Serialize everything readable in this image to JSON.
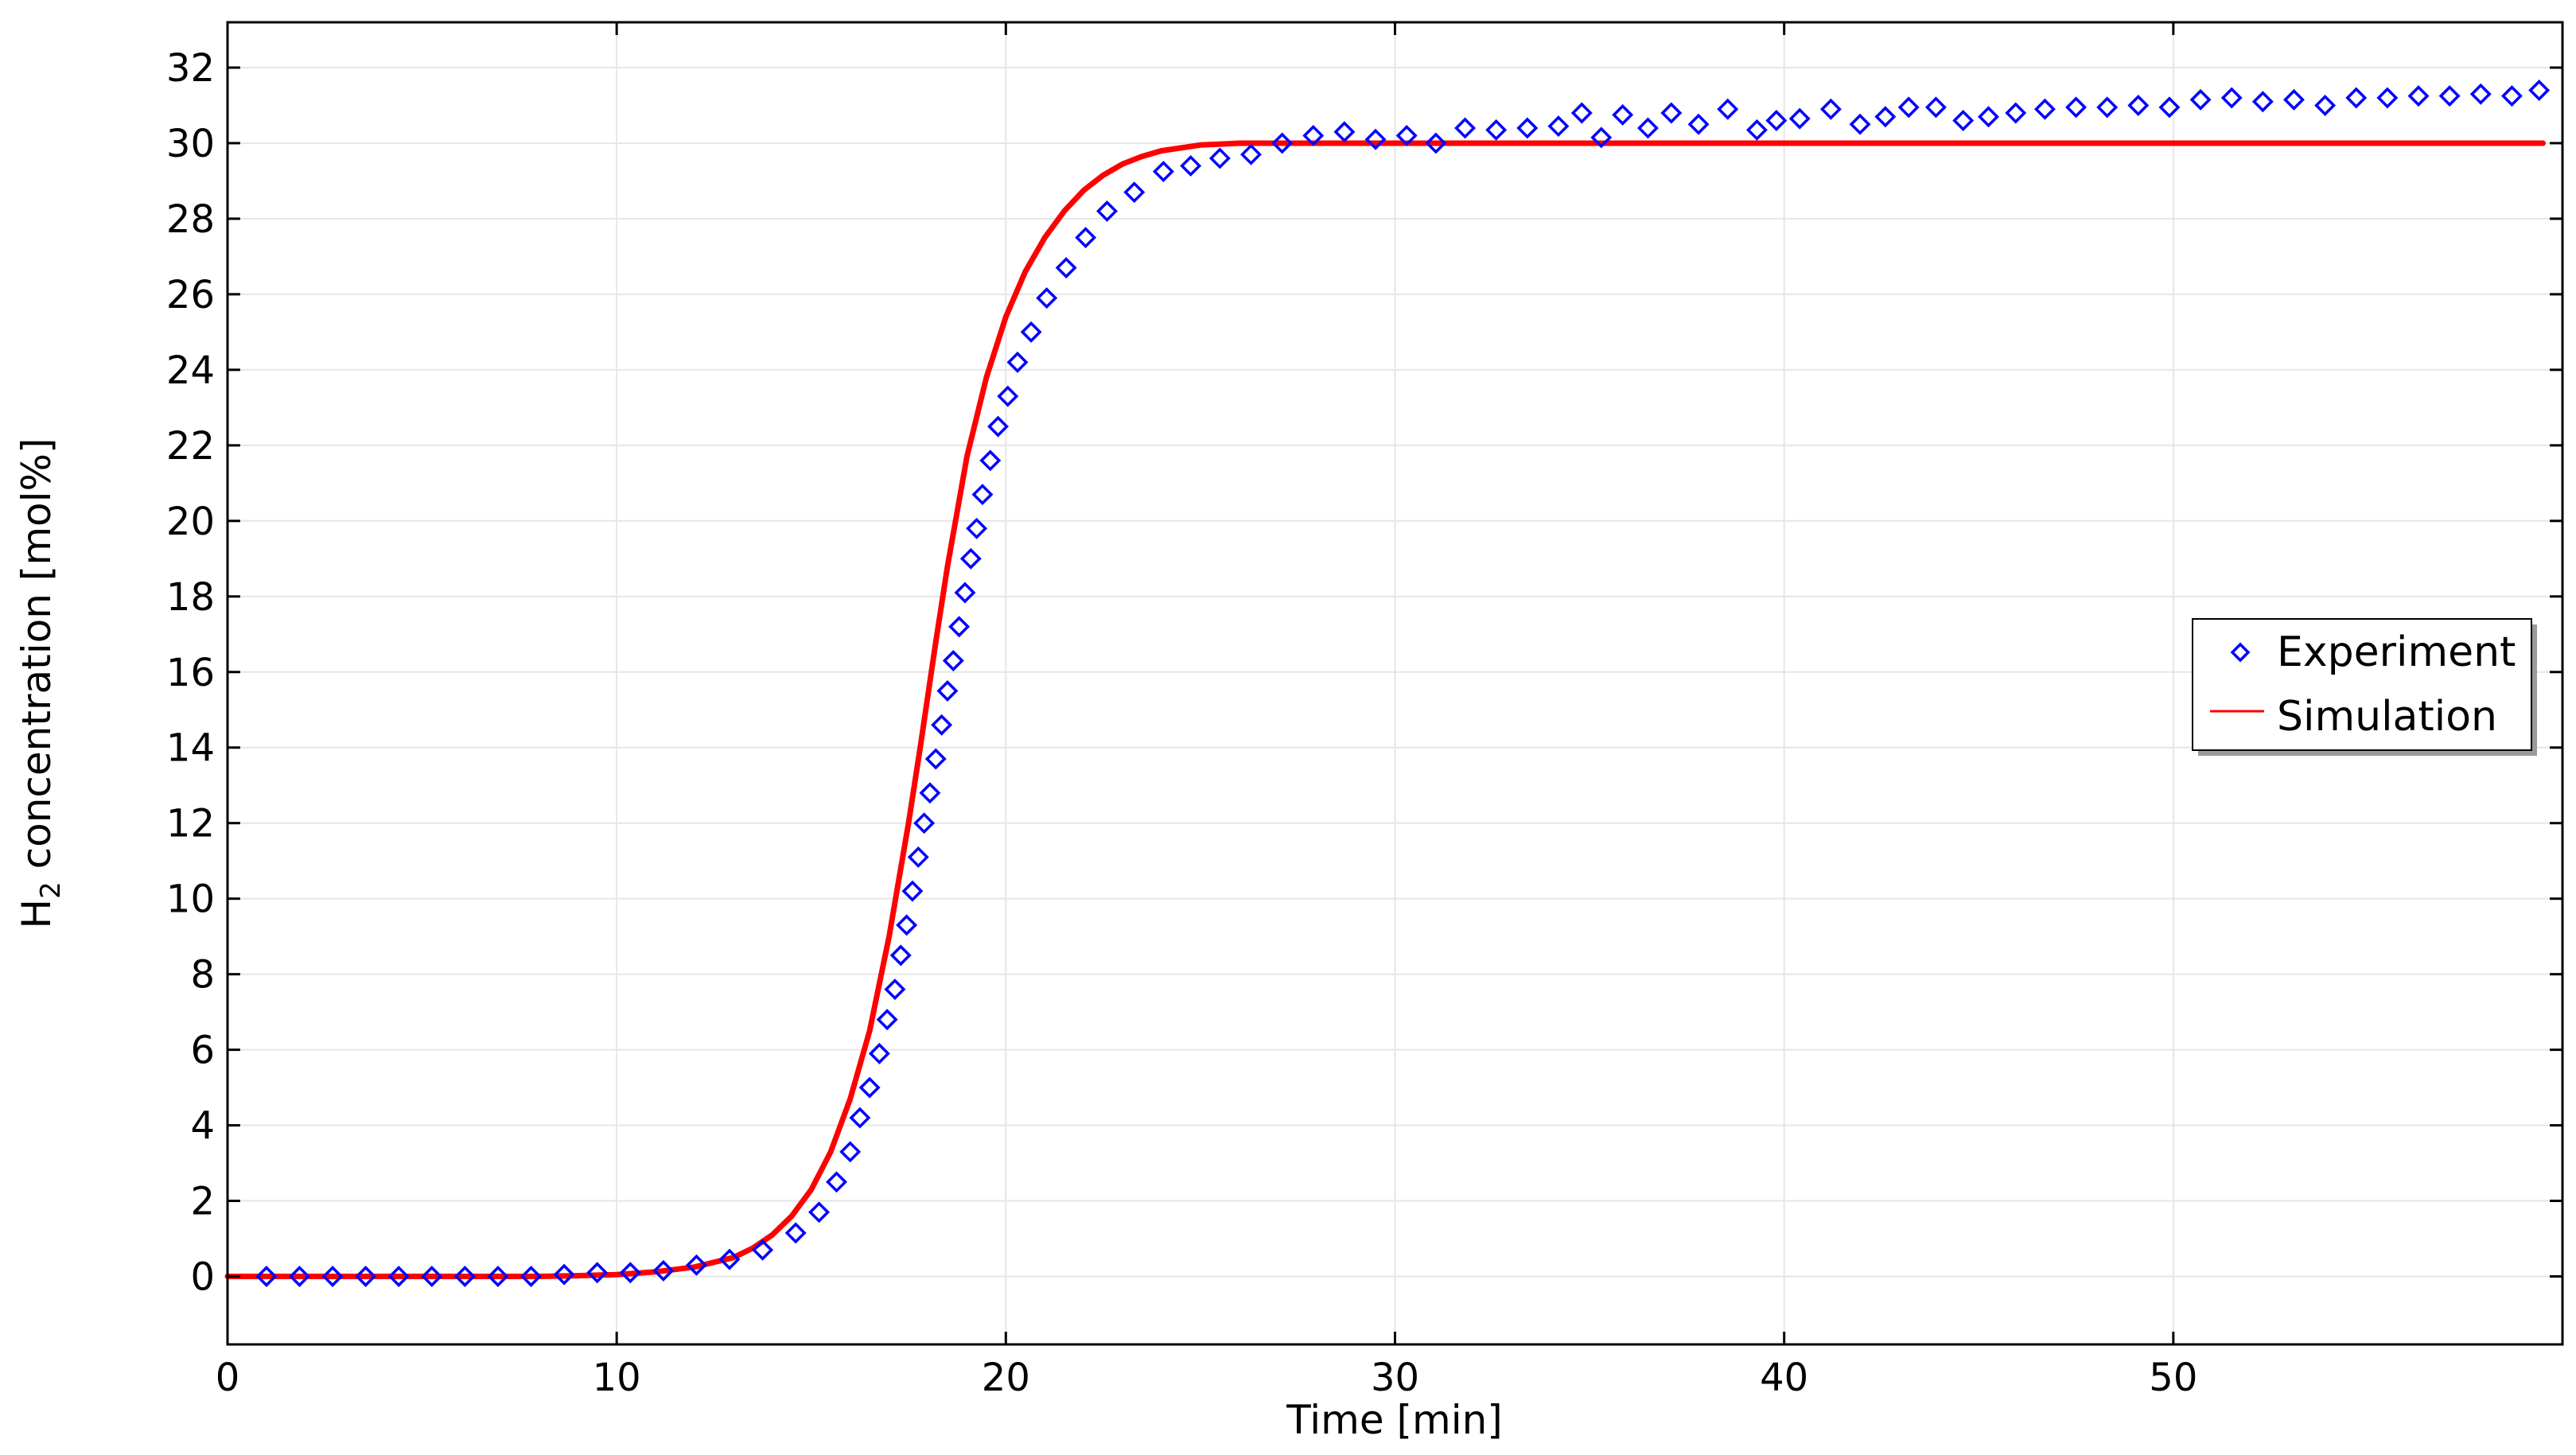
{
  "chart_data": {
    "type": "line",
    "title": "",
    "xlabel": "Time [min]",
    "ylabel_prefix": "H",
    "ylabel_sub": "2",
    "ylabel_suffix": " concentration [mol%]",
    "xlim": [
      0,
      60
    ],
    "ylim": [
      -1.8,
      33.2
    ],
    "xticks": [
      0,
      10,
      20,
      30,
      40,
      50
    ],
    "yticks": [
      0,
      2,
      4,
      6,
      8,
      10,
      12,
      14,
      16,
      18,
      20,
      22,
      24,
      26,
      28,
      30,
      32
    ],
    "grid": true,
    "legend_position": "right",
    "series": [
      {
        "name": "Experiment",
        "kind": "scatter",
        "marker": "diamond",
        "color": "#0000ff",
        "x": [
          1.0,
          1.85,
          2.7,
          3.55,
          4.4,
          5.25,
          6.1,
          6.95,
          7.8,
          8.65,
          9.5,
          10.35,
          11.2,
          12.05,
          12.9,
          13.75,
          14.6,
          15.2,
          15.65,
          16.0,
          16.25,
          16.5,
          16.75,
          16.95,
          17.15,
          17.3,
          17.45,
          17.6,
          17.75,
          17.9,
          18.05,
          18.2,
          18.35,
          18.5,
          18.65,
          18.8,
          18.95,
          19.1,
          19.25,
          19.4,
          19.6,
          19.8,
          20.05,
          20.3,
          20.65,
          21.05,
          21.55,
          22.05,
          22.6,
          23.3,
          24.05,
          24.75,
          25.5,
          26.3,
          27.1,
          27.9,
          28.7,
          29.5,
          30.3,
          31.05,
          31.8,
          32.6,
          33.4,
          34.2,
          34.8,
          35.3,
          35.85,
          36.5,
          37.1,
          37.8,
          38.55,
          39.3,
          39.8,
          40.4,
          41.2,
          41.95,
          42.6,
          43.2,
          43.9,
          44.6,
          45.25,
          45.95,
          46.7,
          47.5,
          48.3,
          49.1,
          49.9,
          50.7,
          51.5,
          52.3,
          53.1,
          53.9,
          54.7,
          55.5,
          56.3,
          57.1,
          57.9,
          58.7,
          59.4
        ],
        "y": [
          0.0,
          0.0,
          0.0,
          0.0,
          0.0,
          0.0,
          0.0,
          0.0,
          0.0,
          0.05,
          0.1,
          0.1,
          0.15,
          0.3,
          0.45,
          0.7,
          1.15,
          1.7,
          2.5,
          3.3,
          4.2,
          5.0,
          5.9,
          6.8,
          7.6,
          8.5,
          9.3,
          10.2,
          11.1,
          12.0,
          12.8,
          13.7,
          14.6,
          15.5,
          16.3,
          17.2,
          18.1,
          19.0,
          19.8,
          20.7,
          21.6,
          22.5,
          23.3,
          24.2,
          25.0,
          25.9,
          26.7,
          27.5,
          28.2,
          28.7,
          29.25,
          29.4,
          29.6,
          29.7,
          30.0,
          30.2,
          30.3,
          30.1,
          30.2,
          30.0,
          30.4,
          30.35,
          30.4,
          30.45,
          30.8,
          30.15,
          30.75,
          30.4,
          30.8,
          30.5,
          30.9,
          30.35,
          30.6,
          30.65,
          30.9,
          30.5,
          30.7,
          30.95,
          30.95,
          30.6,
          30.7,
          30.8,
          30.9,
          30.95,
          30.95,
          31.0,
          30.95,
          31.15,
          31.2,
          31.1,
          31.15,
          31.0,
          31.2,
          31.2,
          31.25,
          31.25,
          31.3,
          31.25,
          31.4
        ]
      },
      {
        "name": "Simulation",
        "kind": "line",
        "color": "#ff0000",
        "x": [
          0,
          2,
          4,
          6,
          8,
          9,
          10,
          11,
          12,
          13,
          13.5,
          14,
          14.5,
          15,
          15.5,
          16,
          16.5,
          17,
          17.5,
          17.8,
          18,
          18.2,
          18.5,
          19,
          19.5,
          20,
          20.5,
          21,
          21.5,
          22,
          22.5,
          23,
          23.5,
          24,
          25,
          26,
          27,
          28,
          30,
          35,
          40,
          45,
          50,
          55,
          59.5
        ],
        "y": [
          0,
          0,
          0,
          0,
          0,
          0.02,
          0.05,
          0.12,
          0.25,
          0.5,
          0.75,
          1.1,
          1.6,
          2.3,
          3.3,
          4.7,
          6.5,
          9.0,
          12.0,
          14.0,
          15.4,
          16.8,
          18.8,
          21.7,
          23.8,
          25.4,
          26.6,
          27.5,
          28.2,
          28.75,
          29.15,
          29.45,
          29.65,
          29.8,
          29.95,
          30.0,
          30.0,
          30.0,
          30.0,
          30.0,
          30.0,
          30.0,
          30.0,
          30.0,
          30.0
        ]
      }
    ]
  }
}
